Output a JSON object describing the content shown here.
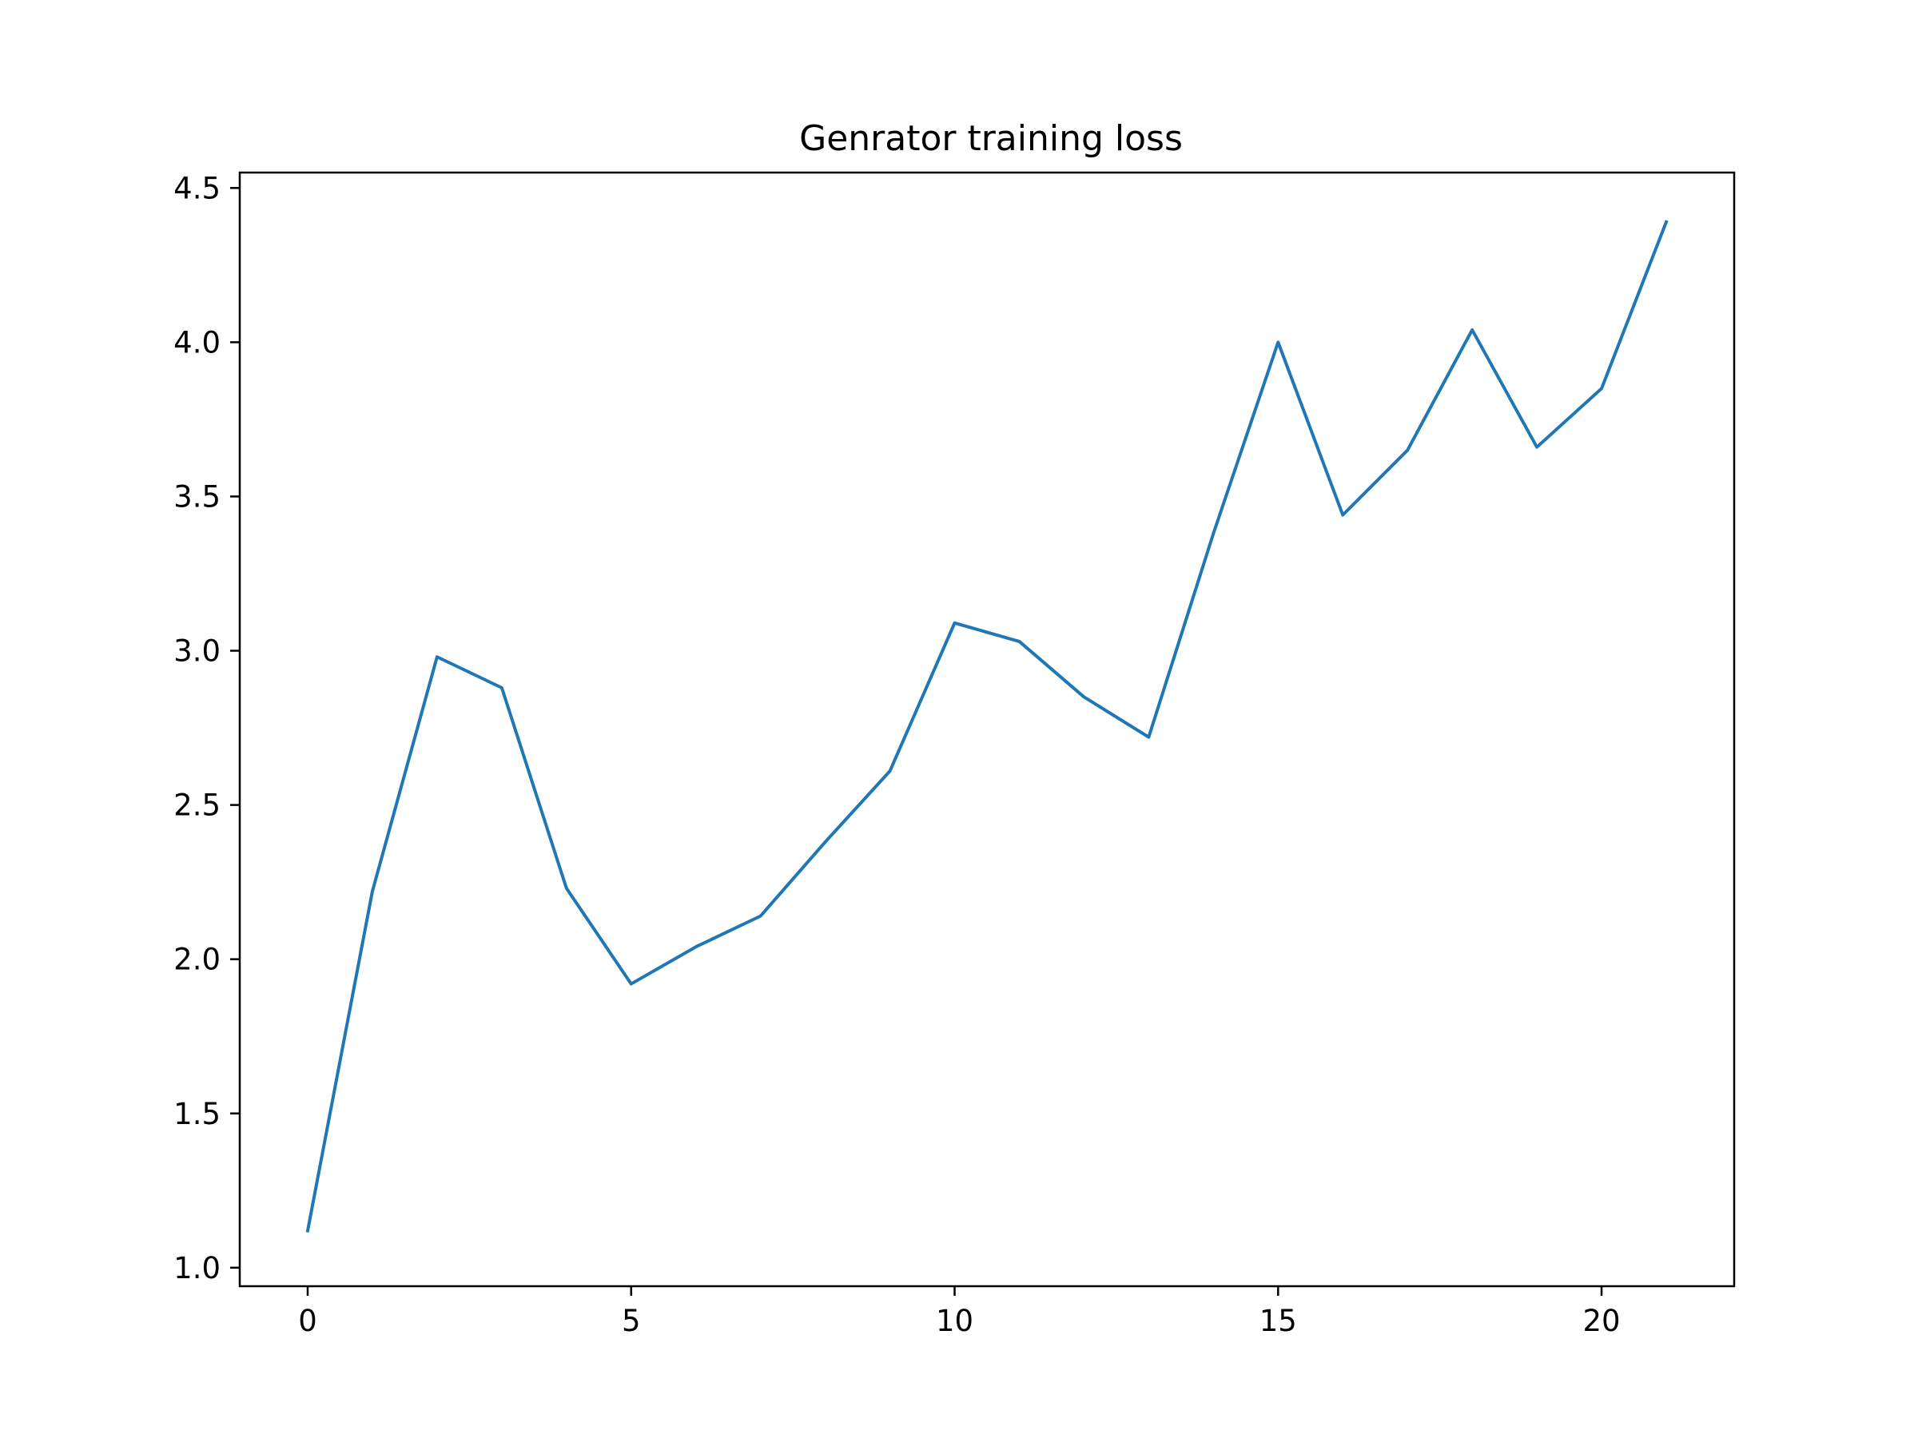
{
  "chart_data": {
    "type": "line",
    "title": "Genrator training loss",
    "xlabel": "",
    "ylabel": "",
    "xlim": [
      -1.05,
      22.05
    ],
    "ylim": [
      0.94,
      4.55
    ],
    "xticks": [
      0,
      5,
      10,
      15,
      20
    ],
    "xtick_labels": [
      "0",
      "5",
      "10",
      "15",
      "20"
    ],
    "yticks": [
      1.0,
      1.5,
      2.0,
      2.5,
      3.0,
      3.5,
      4.0,
      4.5
    ],
    "ytick_labels": [
      "1.0",
      "1.5",
      "2.0",
      "2.5",
      "3.0",
      "3.5",
      "4.0",
      "4.5"
    ],
    "grid": false,
    "legend": "none",
    "series": [
      {
        "color": "#1f77b4",
        "x": [
          0,
          1,
          2,
          3,
          4,
          5,
          6,
          7,
          8,
          9,
          10,
          11,
          12,
          13,
          14,
          15,
          16,
          17,
          18,
          19,
          20,
          21
        ],
        "y": [
          1.12,
          2.22,
          2.98,
          2.88,
          2.23,
          1.92,
          2.04,
          2.14,
          2.38,
          2.61,
          3.09,
          3.03,
          2.85,
          2.72,
          3.38,
          4.0,
          3.44,
          3.65,
          4.04,
          3.66,
          3.85,
          4.39
        ]
      }
    ]
  }
}
